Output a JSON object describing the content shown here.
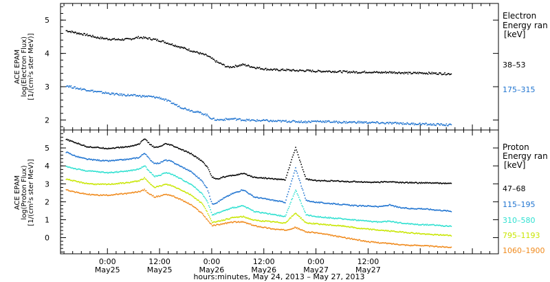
{
  "chart_data": [
    {
      "type": "line",
      "panel": "electron",
      "ylabel_lines": [
        "ACE EPAM",
        "log(Electron Flux)",
        "[1/(cm²s ster MeV)]"
      ],
      "ylim": [
        1.7,
        5.5
      ],
      "yticks": [
        2,
        3,
        4,
        5
      ],
      "xlim": [
        -0.45,
        3.75
      ],
      "legend_title": [
        "Electron",
        "Energy ran",
        "[keV]"
      ],
      "legend_placement": "right",
      "grid": false,
      "series": [
        {
          "name": "38–53",
          "color": "#000000",
          "x": [
            -0.4,
            -0.3,
            -0.2,
            -0.1,
            0.0,
            0.1,
            0.2,
            0.25,
            0.3,
            0.35,
            0.4,
            0.45,
            0.5,
            0.55,
            0.6,
            0.7,
            0.8,
            0.9,
            0.95,
            1.0,
            1.05,
            1.1,
            1.15,
            1.2,
            1.3,
            1.4,
            1.5,
            1.6,
            1.7,
            1.8,
            1.9,
            2.0,
            2.1,
            2.2,
            2.3,
            2.4,
            2.5,
            2.6,
            2.7,
            2.8,
            2.9,
            3.0,
            3.1,
            3.2,
            3.3
          ],
          "y": [
            4.7,
            4.63,
            4.57,
            4.49,
            4.45,
            4.43,
            4.44,
            4.47,
            4.5,
            4.48,
            4.46,
            4.43,
            4.4,
            4.35,
            4.3,
            4.2,
            4.1,
            4.0,
            3.95,
            3.85,
            3.75,
            3.68,
            3.6,
            3.62,
            3.68,
            3.6,
            3.55,
            3.52,
            3.52,
            3.5,
            3.5,
            3.48,
            3.48,
            3.47,
            3.46,
            3.45,
            3.46,
            3.44,
            3.45,
            3.44,
            3.42,
            3.43,
            3.42,
            3.41,
            3.4
          ]
        },
        {
          "name": "175–315",
          "color": "#1e73d0",
          "x": [
            -0.4,
            -0.3,
            -0.2,
            -0.1,
            0.0,
            0.1,
            0.2,
            0.3,
            0.4,
            0.5,
            0.55,
            0.6,
            0.7,
            0.8,
            0.9,
            0.95,
            1.0,
            1.05,
            1.1,
            1.2,
            1.3,
            1.4,
            1.5,
            1.6,
            1.7,
            1.8,
            1.9,
            2.0,
            2.1,
            2.2,
            2.3,
            2.4,
            2.5,
            2.6,
            2.7,
            2.8,
            2.9,
            3.0,
            3.1,
            3.2,
            3.3
          ],
          "y": [
            3.05,
            2.97,
            2.92,
            2.86,
            2.82,
            2.78,
            2.76,
            2.74,
            2.72,
            2.68,
            2.62,
            2.55,
            2.4,
            2.3,
            2.22,
            2.16,
            2.05,
            2.02,
            2.03,
            2.05,
            2.02,
            2.0,
            2.0,
            1.98,
            1.98,
            1.97,
            1.96,
            1.98,
            1.97,
            1.95,
            1.95,
            1.95,
            1.94,
            1.93,
            1.92,
            1.92,
            1.9,
            1.9,
            1.88,
            1.88,
            1.86
          ]
        }
      ]
    },
    {
      "type": "line",
      "panel": "proton",
      "ylabel_lines": [
        "ACE EPAM",
        "log(Proton Flux)",
        "[1/(cm²s ster MeV)]"
      ],
      "ylim": [
        -0.9,
        6.0
      ],
      "yticks": [
        0,
        1,
        2,
        3,
        4,
        5
      ],
      "xlim": [
        -0.45,
        3.75
      ],
      "legend_title": [
        "Proton",
        "Energy ran",
        "[keV]"
      ],
      "legend_placement": "right",
      "grid": false,
      "series": [
        {
          "name": "47–68",
          "color": "#000000",
          "x": [
            -0.4,
            -0.3,
            -0.2,
            -0.1,
            0.0,
            0.1,
            0.2,
            0.3,
            0.35,
            0.4,
            0.45,
            0.5,
            0.55,
            0.6,
            0.7,
            0.8,
            0.9,
            0.95,
            1.0,
            1.05,
            1.1,
            1.2,
            1.3,
            1.4,
            1.5,
            1.6,
            1.7,
            1.8,
            1.9,
            2.0,
            2.1,
            2.2,
            2.3,
            2.4,
            2.5,
            2.6,
            2.7,
            2.8,
            2.9,
            3.0,
            3.1,
            3.2,
            3.3
          ],
          "y": [
            5.5,
            5.3,
            5.1,
            5.05,
            5.0,
            5.05,
            5.1,
            5.25,
            5.55,
            5.25,
            5.05,
            5.1,
            5.25,
            5.2,
            4.95,
            4.7,
            4.3,
            4.0,
            3.4,
            3.3,
            3.4,
            3.5,
            3.6,
            3.4,
            3.35,
            3.3,
            3.25,
            5.05,
            3.3,
            3.2,
            3.2,
            3.18,
            3.15,
            3.15,
            3.12,
            3.12,
            3.15,
            3.1,
            3.1,
            3.08,
            3.08,
            3.06,
            3.05
          ]
        },
        {
          "name": "115–195",
          "color": "#1e73d0",
          "x": [
            -0.4,
            -0.3,
            -0.2,
            -0.1,
            0.0,
            0.1,
            0.2,
            0.3,
            0.35,
            0.4,
            0.45,
            0.5,
            0.55,
            0.6,
            0.7,
            0.8,
            0.9,
            0.95,
            1.0,
            1.05,
            1.1,
            1.2,
            1.3,
            1.4,
            1.5,
            1.6,
            1.7,
            1.8,
            1.9,
            2.0,
            2.1,
            2.2,
            2.3,
            2.4,
            2.5,
            2.6,
            2.7,
            2.8,
            2.9,
            3.0,
            3.1,
            3.2,
            3.3
          ],
          "y": [
            4.8,
            4.55,
            4.4,
            4.35,
            4.3,
            4.35,
            4.4,
            4.5,
            4.75,
            4.4,
            4.15,
            4.2,
            4.35,
            4.3,
            4.0,
            3.7,
            3.2,
            2.8,
            1.9,
            2.0,
            2.2,
            2.5,
            2.7,
            2.3,
            2.2,
            2.1,
            2.0,
            3.9,
            2.1,
            2.0,
            1.95,
            1.9,
            1.85,
            1.8,
            1.8,
            1.75,
            1.85,
            1.7,
            1.65,
            1.65,
            1.6,
            1.55,
            1.5
          ]
        },
        {
          "name": "310–580",
          "color": "#2ee0d0",
          "x": [
            -0.4,
            -0.3,
            -0.2,
            -0.1,
            0.0,
            0.1,
            0.2,
            0.3,
            0.35,
            0.4,
            0.45,
            0.5,
            0.55,
            0.6,
            0.7,
            0.8,
            0.9,
            0.95,
            1.0,
            1.05,
            1.1,
            1.2,
            1.3,
            1.4,
            1.5,
            1.6,
            1.7,
            1.8,
            1.9,
            2.0,
            2.1,
            2.2,
            2.3,
            2.4,
            2.5,
            2.6,
            2.7,
            2.8,
            2.9,
            3.0,
            3.1,
            3.2,
            3.3
          ],
          "y": [
            4.0,
            3.85,
            3.75,
            3.7,
            3.65,
            3.7,
            3.75,
            3.85,
            4.05,
            3.7,
            3.45,
            3.5,
            3.65,
            3.6,
            3.3,
            3.0,
            2.5,
            2.1,
            1.3,
            1.4,
            1.5,
            1.7,
            1.8,
            1.5,
            1.4,
            1.3,
            1.2,
            2.7,
            1.3,
            1.2,
            1.15,
            1.1,
            1.05,
            1.0,
            0.95,
            0.9,
            0.95,
            0.85,
            0.8,
            0.75,
            0.75,
            0.7,
            0.65
          ]
        },
        {
          "name": "795–1193",
          "color": "#c8e600",
          "x": [
            -0.4,
            -0.3,
            -0.2,
            -0.1,
            0.0,
            0.1,
            0.2,
            0.3,
            0.35,
            0.4,
            0.45,
            0.5,
            0.55,
            0.6,
            0.7,
            0.8,
            0.9,
            0.95,
            1.0,
            1.05,
            1.1,
            1.2,
            1.3,
            1.4,
            1.5,
            1.6,
            1.7,
            1.8,
            1.9,
            2.0,
            2.1,
            2.2,
            2.3,
            2.4,
            2.5,
            2.6,
            2.7,
            2.8,
            2.9,
            3.0,
            3.1,
            3.2,
            3.3
          ],
          "y": [
            3.3,
            3.15,
            3.05,
            3.0,
            3.0,
            3.05,
            3.1,
            3.2,
            3.35,
            3.05,
            2.85,
            2.9,
            3.0,
            2.95,
            2.7,
            2.4,
            1.95,
            1.5,
            0.85,
            0.95,
            1.0,
            1.15,
            1.2,
            1.0,
            0.95,
            0.9,
            0.85,
            1.4,
            0.85,
            0.8,
            0.75,
            0.7,
            0.65,
            0.55,
            0.5,
            0.45,
            0.4,
            0.35,
            0.3,
            0.25,
            0.2,
            0.18,
            0.15
          ]
        },
        {
          "name": "1060–1900",
          "color": "#f08a1c",
          "x": [
            -0.4,
            -0.3,
            -0.2,
            -0.1,
            0.0,
            0.1,
            0.2,
            0.3,
            0.35,
            0.4,
            0.45,
            0.5,
            0.55,
            0.6,
            0.7,
            0.8,
            0.9,
            0.95,
            1.0,
            1.05,
            1.1,
            1.2,
            1.3,
            1.4,
            1.5,
            1.6,
            1.7,
            1.8,
            1.9,
            2.0,
            2.1,
            2.2,
            2.3,
            2.4,
            2.5,
            2.6,
            2.7,
            2.8,
            2.9,
            3.0,
            3.1,
            3.2,
            3.3
          ],
          "y": [
            2.7,
            2.55,
            2.45,
            2.4,
            2.4,
            2.45,
            2.5,
            2.6,
            2.7,
            2.45,
            2.3,
            2.35,
            2.45,
            2.4,
            2.15,
            1.85,
            1.4,
            1.05,
            0.7,
            0.75,
            0.8,
            0.9,
            0.9,
            0.7,
            0.6,
            0.5,
            0.45,
            0.6,
            0.35,
            0.3,
            0.2,
            0.1,
            0.0,
            -0.1,
            -0.2,
            -0.25,
            -0.3,
            -0.35,
            -0.4,
            -0.4,
            -0.45,
            -0.48,
            -0.5
          ]
        }
      ]
    }
  ],
  "x_axis": {
    "ticks": [
      {
        "x": 0,
        "time": "0:00",
        "date": "May25"
      },
      {
        "x": 0.5,
        "time": "12:00",
        "date": "May25"
      },
      {
        "x": 1,
        "time": "0:00",
        "date": "May26"
      },
      {
        "x": 1.5,
        "time": "12:00",
        "date": "May26"
      },
      {
        "x": 2,
        "time": "0:00",
        "date": "May27"
      },
      {
        "x": 2.5,
        "time": "12:00",
        "date": "May27"
      }
    ],
    "label": "hours:minutes, May 24, 2013 – May 27, 2013"
  },
  "units_note": "x values are days relative to 0:00 May25, 2013"
}
